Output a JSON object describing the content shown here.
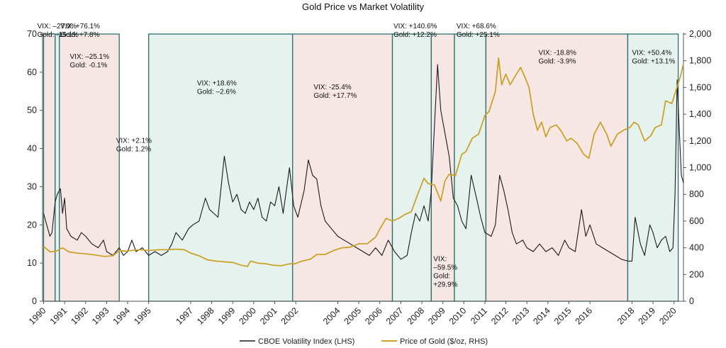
{
  "chart_data": {
    "type": "line",
    "title": "Gold Price vs Market Volatility",
    "x_ticks": [
      "1990",
      "1991",
      "1992",
      "1993",
      "1994",
      "1995",
      "1997",
      "1998",
      "1999",
      "2000",
      "2001",
      "2002",
      "2004",
      "2005",
      "2006",
      "2007",
      "2008",
      "2009",
      "2010",
      "2011",
      "2012",
      "2013",
      "2014",
      "2015",
      "2016",
      "2018",
      "2019",
      "2020"
    ],
    "y_left": {
      "range": [
        0,
        70
      ],
      "ticks": [
        "0",
        "10",
        "20",
        "30",
        "40",
        "50",
        "60",
        "70"
      ]
    },
    "y_right": {
      "range": [
        0,
        2000
      ],
      "ticks": [
        "0",
        "200",
        "400",
        "600",
        "800",
        "1,000",
        "1,200",
        "1,400",
        "1,600",
        "1,800",
        "2,000"
      ]
    },
    "legend": [
      {
        "label": "CBOE Volatility Index (LHS)",
        "color": "#1a1a1a"
      },
      {
        "label": "Price of Gold ($/oz, RHS)",
        "color": "#c9a32a"
      }
    ],
    "regimes": [
      {
        "start": 1990.0,
        "end": 1990.55,
        "kind": "down"
      },
      {
        "start": 1990.55,
        "end": 1990.75,
        "kind": "up"
      },
      {
        "start": 1990.75,
        "end": 1993.6,
        "kind": "down"
      },
      {
        "start": 1995.0,
        "end": 2001.85,
        "kind": "up"
      },
      {
        "start": 2001.85,
        "end": 2006.6,
        "kind": "down"
      },
      {
        "start": 2006.6,
        "end": 2008.45,
        "kind": "up"
      },
      {
        "start": 2008.45,
        "end": 2009.55,
        "kind": "down"
      },
      {
        "start": 2009.55,
        "end": 2011.05,
        "kind": "up"
      },
      {
        "start": 2011.05,
        "end": 2017.8,
        "kind": "down"
      },
      {
        "start": 2017.8,
        "end": 2020.2,
        "kind": "up"
      }
    ],
    "band_colors": {
      "up": "#e6f2ee",
      "down": "#f6e7e5",
      "edge": "#2f6f6f"
    },
    "annotations": [
      {
        "lines": [
          "VIX: –27.9%",
          "Gold: -15.1%"
        ],
        "x": 1989.7,
        "y": 71.5
      },
      {
        "lines": [
          "VIX: +76.1%",
          "Gold: +7.8%"
        ],
        "x": 1990.8,
        "y": 71.5
      },
      {
        "lines": [
          "VIX: –25.1%",
          "Gold: -0.1%"
        ],
        "x": 1991.25,
        "y": 63.5
      },
      {
        "lines": [
          "VIX: +2.1%",
          "Gold: 1.2%"
        ],
        "x": 1993.45,
        "y": 41.5
      },
      {
        "lines": [
          "VIX: +18.6%",
          "Gold: –2.6%"
        ],
        "x": 1997.3,
        "y": 56.5
      },
      {
        "lines": [
          "VIX: -25.4%",
          "Gold: +17.7%"
        ],
        "x": 2002.85,
        "y": 55.5
      },
      {
        "lines": [
          "VIX: +140.6%",
          "Gold: +12.2%"
        ],
        "x": 2006.65,
        "y": 71.5
      },
      {
        "lines": [
          "VIX: +68.6%",
          "Gold: +25.1%"
        ],
        "x": 2009.65,
        "y": 71.5
      },
      {
        "lines": [
          "VIX: -18.8%",
          "Gold: -3.9%"
        ],
        "x": 2013.55,
        "y": 64.5
      },
      {
        "lines": [
          "VIX: +50.4%",
          "Gold: +13.1%"
        ],
        "x": 2018.0,
        "y": 64.5
      },
      {
        "lines": [
          "VIX:",
          "–59.5%",
          "Gold:",
          "+29.9%"
        ],
        "x": 2008.55,
        "y": 10.5
      }
    ],
    "x_axis": {
      "ticks": [
        1990,
        1991,
        1992,
        1993,
        1994,
        1995,
        1997,
        1998,
        1999,
        2000,
        2001,
        2002,
        2004,
        2005,
        2006,
        2007,
        2008,
        2009,
        2010,
        2011,
        2012,
        2013,
        2014,
        2015,
        2016,
        2018,
        2019,
        2020
      ]
    },
    "series": [
      {
        "legend_index": 0,
        "axis": "left",
        "points": [
          [
            1990.0,
            23
          ],
          [
            1990.15,
            20
          ],
          [
            1990.3,
            17
          ],
          [
            1990.4,
            18
          ],
          [
            1990.55,
            26
          ],
          [
            1990.65,
            28
          ],
          [
            1990.8,
            29.5
          ],
          [
            1990.9,
            23
          ],
          [
            1991.0,
            27
          ],
          [
            1991.1,
            19
          ],
          [
            1991.3,
            17
          ],
          [
            1991.6,
            16
          ],
          [
            1991.8,
            18
          ],
          [
            1992.0,
            17
          ],
          [
            1992.3,
            15
          ],
          [
            1992.6,
            14
          ],
          [
            1992.85,
            16
          ],
          [
            1993.0,
            13
          ],
          [
            1993.3,
            12
          ],
          [
            1993.6,
            14
          ],
          [
            1993.8,
            12
          ],
          [
            1994.0,
            13
          ],
          [
            1994.2,
            16
          ],
          [
            1994.4,
            13
          ],
          [
            1994.7,
            14
          ],
          [
            1995.0,
            12
          ],
          [
            1995.3,
            13
          ],
          [
            1995.6,
            12
          ],
          [
            1995.9,
            13
          ],
          [
            1996.1,
            15
          ],
          [
            1996.3,
            18
          ],
          [
            1996.6,
            16
          ],
          [
            1996.9,
            19
          ],
          [
            1997.1,
            20
          ],
          [
            1997.4,
            21
          ],
          [
            1997.7,
            27
          ],
          [
            1997.9,
            24
          ],
          [
            1998.1,
            23
          ],
          [
            1998.3,
            22
          ],
          [
            1998.6,
            38
          ],
          [
            1998.8,
            31
          ],
          [
            1999.0,
            26
          ],
          [
            1999.2,
            28
          ],
          [
            1999.4,
            24
          ],
          [
            1999.6,
            23
          ],
          [
            1999.8,
            26
          ],
          [
            2000.0,
            24
          ],
          [
            2000.2,
            27
          ],
          [
            2000.4,
            22
          ],
          [
            2000.6,
            21
          ],
          [
            2000.8,
            26
          ],
          [
            2001.0,
            25
          ],
          [
            2001.2,
            30
          ],
          [
            2001.4,
            23
          ],
          [
            2001.7,
            35
          ],
          [
            2001.9,
            25
          ],
          [
            2002.1,
            22
          ],
          [
            2002.4,
            29
          ],
          [
            2002.6,
            37
          ],
          [
            2002.8,
            33
          ],
          [
            2003.0,
            32
          ],
          [
            2003.2,
            25
          ],
          [
            2003.4,
            21
          ],
          [
            2003.7,
            19
          ],
          [
            2004.0,
            17
          ],
          [
            2004.3,
            16
          ],
          [
            2004.6,
            15
          ],
          [
            2004.9,
            14
          ],
          [
            2005.2,
            13
          ],
          [
            2005.5,
            12
          ],
          [
            2005.8,
            14
          ],
          [
            2006.1,
            12
          ],
          [
            2006.4,
            16
          ],
          [
            2006.7,
            13
          ],
          [
            2007.0,
            11
          ],
          [
            2007.3,
            12
          ],
          [
            2007.5,
            18
          ],
          [
            2007.7,
            23
          ],
          [
            2007.9,
            21
          ],
          [
            2008.1,
            25
          ],
          [
            2008.3,
            21
          ],
          [
            2008.45,
            29
          ],
          [
            2008.6,
            46
          ],
          [
            2008.75,
            62
          ],
          [
            2008.9,
            50
          ],
          [
            2009.1,
            44
          ],
          [
            2009.3,
            38
          ],
          [
            2009.5,
            27
          ],
          [
            2009.7,
            25
          ],
          [
            2009.9,
            21
          ],
          [
            2010.1,
            19
          ],
          [
            2010.35,
            33
          ],
          [
            2010.6,
            27
          ],
          [
            2010.8,
            22
          ],
          [
            2011.0,
            18
          ],
          [
            2011.3,
            17
          ],
          [
            2011.5,
            20
          ],
          [
            2011.7,
            33
          ],
          [
            2011.9,
            29
          ],
          [
            2012.1,
            24
          ],
          [
            2012.3,
            18
          ],
          [
            2012.5,
            15
          ],
          [
            2012.8,
            16
          ],
          [
            2013.0,
            14
          ],
          [
            2013.3,
            13
          ],
          [
            2013.6,
            15
          ],
          [
            2013.9,
            13
          ],
          [
            2014.2,
            14
          ],
          [
            2014.5,
            12
          ],
          [
            2014.8,
            16
          ],
          [
            2015.0,
            14
          ],
          [
            2015.3,
            13
          ],
          [
            2015.6,
            24
          ],
          [
            2015.8,
            17
          ],
          [
            2016.0,
            20
          ],
          [
            2016.3,
            15
          ],
          [
            2016.6,
            14
          ],
          [
            2016.9,
            13
          ],
          [
            2017.2,
            12
          ],
          [
            2017.5,
            11
          ],
          [
            2017.8,
            10.5
          ],
          [
            2018.0,
            10.5
          ],
          [
            2018.15,
            22
          ],
          [
            2018.4,
            15
          ],
          [
            2018.6,
            12
          ],
          [
            2018.85,
            20
          ],
          [
            2019.0,
            18
          ],
          [
            2019.2,
            14
          ],
          [
            2019.4,
            16
          ],
          [
            2019.6,
            17
          ],
          [
            2019.8,
            13
          ],
          [
            2019.95,
            14
          ],
          [
            2020.05,
            28
          ],
          [
            2020.15,
            58
          ],
          [
            2020.25,
            45
          ],
          [
            2020.35,
            33
          ],
          [
            2020.45,
            31
          ]
        ]
      },
      {
        "legend_index": 1,
        "axis": "right",
        "points": [
          [
            1990.0,
            410
          ],
          [
            1990.3,
            370
          ],
          [
            1990.6,
            375
          ],
          [
            1990.9,
            400
          ],
          [
            1991.2,
            370
          ],
          [
            1991.6,
            360
          ],
          [
            1992.0,
            355
          ],
          [
            1992.5,
            345
          ],
          [
            1992.9,
            335
          ],
          [
            1993.3,
            340
          ],
          [
            1993.6,
            380
          ],
          [
            1993.9,
            375
          ],
          [
            1994.2,
            380
          ],
          [
            1994.6,
            385
          ],
          [
            1995.0,
            380
          ],
          [
            1995.5,
            385
          ],
          [
            1995.9,
            385
          ],
          [
            1996.3,
            390
          ],
          [
            1996.7,
            385
          ],
          [
            1997.0,
            360
          ],
          [
            1997.4,
            340
          ],
          [
            1997.8,
            310
          ],
          [
            1998.2,
            300
          ],
          [
            1998.6,
            295
          ],
          [
            1999.0,
            290
          ],
          [
            1999.4,
            270
          ],
          [
            1999.7,
            260
          ],
          [
            1999.85,
            300
          ],
          [
            2000.2,
            285
          ],
          [
            2000.6,
            280
          ],
          [
            2000.9,
            270
          ],
          [
            2001.3,
            265
          ],
          [
            2001.7,
            280
          ],
          [
            2001.95,
            280
          ],
          [
            2002.3,
            300
          ],
          [
            2002.7,
            315
          ],
          [
            2003.0,
            350
          ],
          [
            2003.4,
            350
          ],
          [
            2003.8,
            380
          ],
          [
            2004.2,
            400
          ],
          [
            2004.6,
            405
          ],
          [
            2005.0,
            430
          ],
          [
            2005.4,
            430
          ],
          [
            2005.8,
            480
          ],
          [
            2006.0,
            540
          ],
          [
            2006.3,
            620
          ],
          [
            2006.6,
            600
          ],
          [
            2006.9,
            620
          ],
          [
            2007.2,
            650
          ],
          [
            2007.5,
            670
          ],
          [
            2007.8,
            800
          ],
          [
            2008.1,
            920
          ],
          [
            2008.3,
            880
          ],
          [
            2008.6,
            870
          ],
          [
            2008.9,
            750
          ],
          [
            2009.1,
            900
          ],
          [
            2009.3,
            950
          ],
          [
            2009.6,
            940
          ],
          [
            2009.9,
            1100
          ],
          [
            2010.1,
            1120
          ],
          [
            2010.4,
            1220
          ],
          [
            2010.7,
            1250
          ],
          [
            2011.0,
            1390
          ],
          [
            2011.2,
            1420
          ],
          [
            2011.5,
            1570
          ],
          [
            2011.65,
            1820
          ],
          [
            2011.8,
            1620
          ],
          [
            2012.0,
            1700
          ],
          [
            2012.2,
            1620
          ],
          [
            2012.5,
            1700
          ],
          [
            2012.7,
            1750
          ],
          [
            2012.9,
            1680
          ],
          [
            2013.1,
            1600
          ],
          [
            2013.3,
            1400
          ],
          [
            2013.5,
            1280
          ],
          [
            2013.7,
            1340
          ],
          [
            2013.9,
            1230
          ],
          [
            2014.1,
            1300
          ],
          [
            2014.4,
            1320
          ],
          [
            2014.6,
            1280
          ],
          [
            2014.9,
            1200
          ],
          [
            2015.1,
            1220
          ],
          [
            2015.4,
            1180
          ],
          [
            2015.7,
            1100
          ],
          [
            2015.95,
            1070
          ],
          [
            2016.2,
            1250
          ],
          [
            2016.5,
            1340
          ],
          [
            2016.8,
            1250
          ],
          [
            2017.0,
            1160
          ],
          [
            2017.3,
            1250
          ],
          [
            2017.6,
            1280
          ],
          [
            2017.9,
            1300
          ],
          [
            2018.1,
            1340
          ],
          [
            2018.3,
            1320
          ],
          [
            2018.6,
            1200
          ],
          [
            2018.9,
            1240
          ],
          [
            2019.1,
            1300
          ],
          [
            2019.4,
            1320
          ],
          [
            2019.6,
            1500
          ],
          [
            2019.9,
            1480
          ],
          [
            2020.1,
            1580
          ],
          [
            2020.3,
            1680
          ],
          [
            2020.45,
            1780
          ]
        ]
      }
    ]
  }
}
